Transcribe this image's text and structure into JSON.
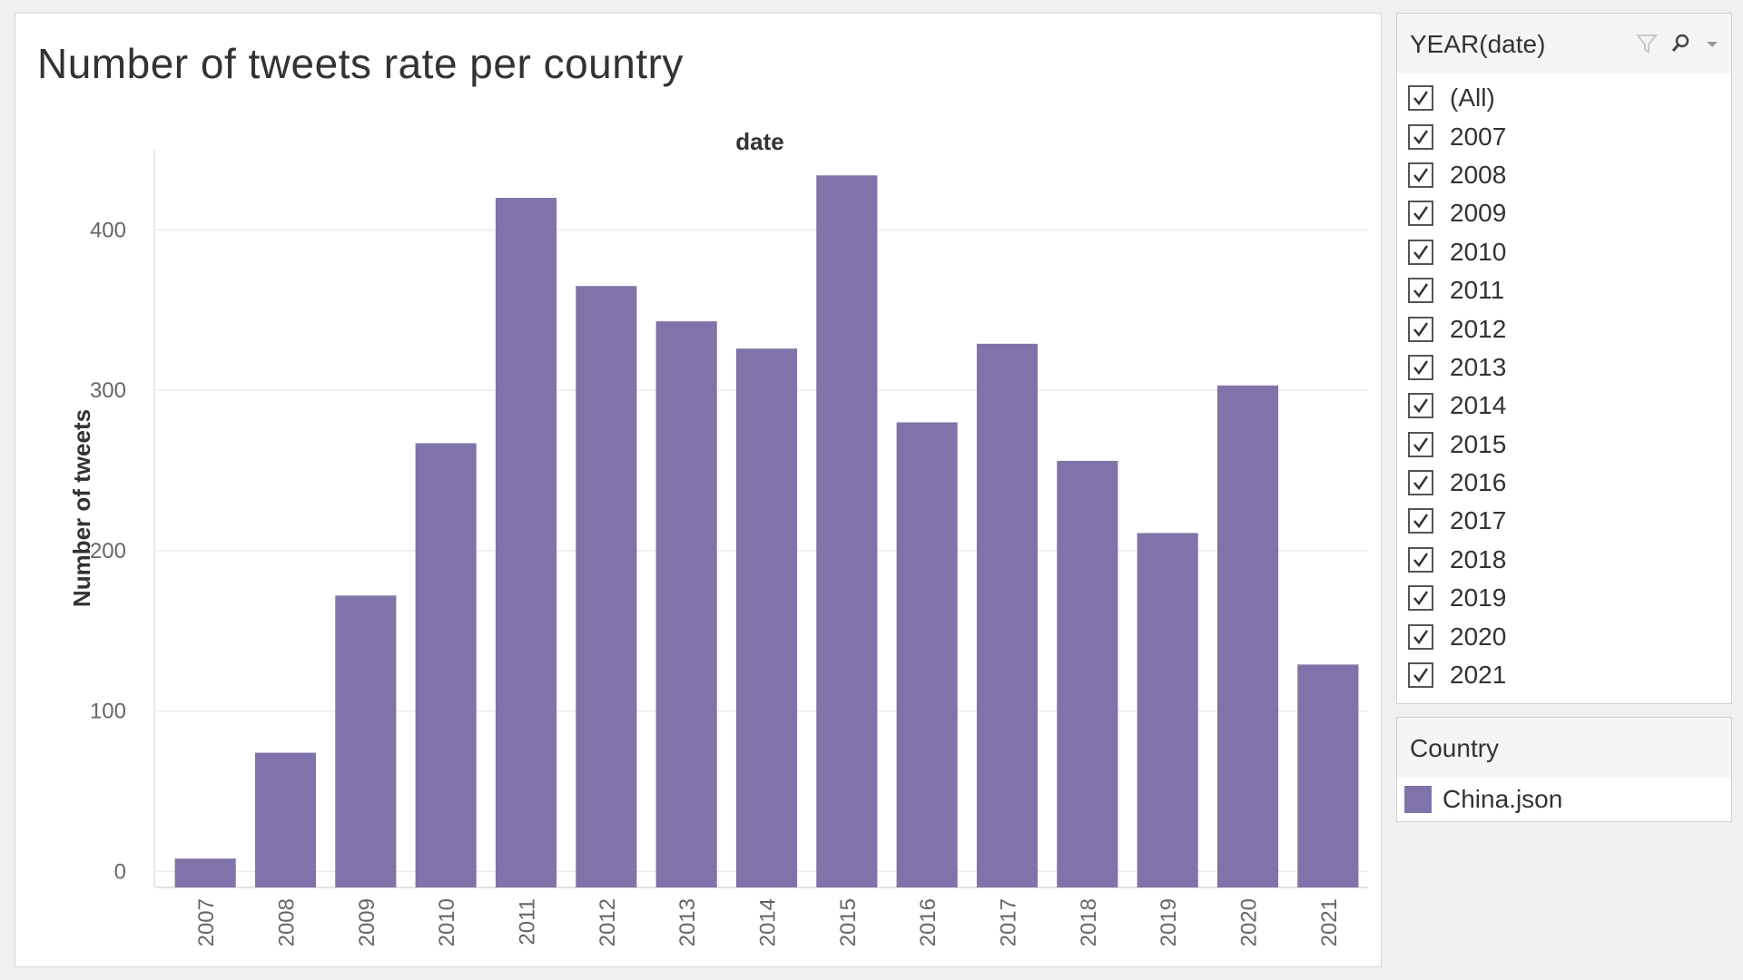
{
  "colors": {
    "bar": "#8073a9",
    "grid": "#ebebeb",
    "panel_header": "#f5f5f5"
  },
  "chart_data": {
    "type": "bar",
    "title": "Number of tweets rate per country",
    "xlabel": "date",
    "ylabel": "Number of tweets",
    "categories": [
      "2007",
      "2008",
      "2009",
      "2010",
      "2011",
      "2012",
      "2013",
      "2014",
      "2015",
      "2016",
      "2017",
      "2018",
      "2019",
      "2020",
      "2021"
    ],
    "series": [
      {
        "name": "China.json",
        "values": [
          8,
          74,
          172,
          267,
          420,
          365,
          343,
          326,
          434,
          280,
          329,
          256,
          211,
          303,
          129
        ]
      }
    ],
    "ylim": [
      -10,
      450
    ],
    "yticks": [
      0,
      100,
      200,
      300,
      400
    ],
    "grid": true
  },
  "filter": {
    "title": "YEAR(date)",
    "header_icons": [
      "filter-icon",
      "search-icon",
      "dropdown-icon"
    ],
    "items": [
      {
        "label": "(All)",
        "checked": true
      },
      {
        "label": "2007",
        "checked": true
      },
      {
        "label": "2008",
        "checked": true
      },
      {
        "label": "2009",
        "checked": true
      },
      {
        "label": "2010",
        "checked": true
      },
      {
        "label": "2011",
        "checked": true
      },
      {
        "label": "2012",
        "checked": true
      },
      {
        "label": "2013",
        "checked": true
      },
      {
        "label": "2014",
        "checked": true
      },
      {
        "label": "2015",
        "checked": true
      },
      {
        "label": "2016",
        "checked": true
      },
      {
        "label": "2017",
        "checked": true
      },
      {
        "label": "2018",
        "checked": true
      },
      {
        "label": "2019",
        "checked": true
      },
      {
        "label": "2020",
        "checked": true
      },
      {
        "label": "2021",
        "checked": true
      }
    ]
  },
  "legend": {
    "title": "Country",
    "items": [
      {
        "label": "China.json",
        "color": "#8073a9"
      }
    ]
  }
}
